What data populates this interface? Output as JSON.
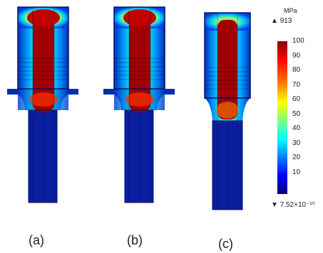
{
  "panels": [
    {
      "label": "(a)",
      "variant": "a"
    },
    {
      "label": "(b)",
      "variant": "b"
    },
    {
      "label": "(c)",
      "variant": "c"
    }
  ],
  "colorbar": {
    "unit": "MPa",
    "max_marker": "913",
    "min_marker": "7.52×10⁻¹⁰",
    "ticks": [
      "100",
      "90",
      "80",
      "70",
      "60",
      "50",
      "40",
      "30",
      "20",
      "10"
    ],
    "colors": [
      "#800000",
      "#ff0000",
      "#ff8000",
      "#ffff00",
      "#80ff80",
      "#00ffff",
      "#0080ff",
      "#0000ff",
      "#000080"
    ]
  }
}
